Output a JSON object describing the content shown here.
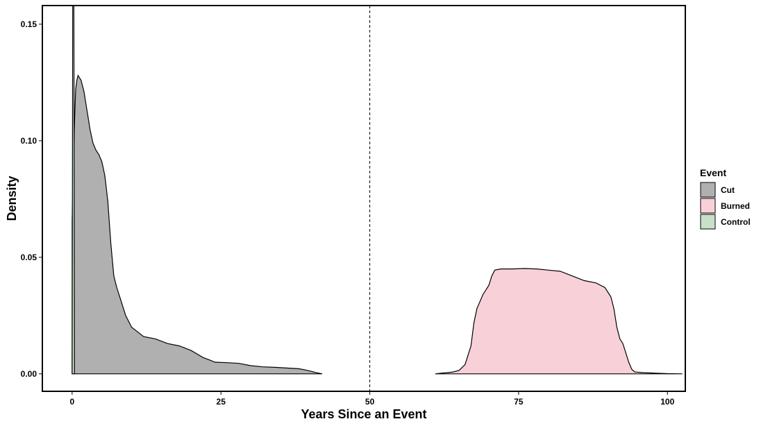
{
  "chart_data": {
    "type": "area",
    "chart_subtype": "density",
    "xlabel": "Years Since an Event",
    "ylabel": "Density",
    "xlim": [
      -5,
      103
    ],
    "ylim": [
      -0.0075,
      0.158
    ],
    "xticks": [
      0,
      25,
      50,
      75,
      100
    ],
    "yticks": [
      0.0,
      0.05,
      0.1,
      0.15
    ],
    "ytick_labels": [
      "0.00",
      "0.05",
      "0.10",
      "0.15"
    ],
    "grid": false,
    "legend": {
      "title": "Event",
      "position": "right"
    },
    "reference_lines": [
      {
        "axis": "x",
        "value": 50,
        "style": "dashed"
      }
    ],
    "series": [
      {
        "name": "Cut",
        "color": "#b0b0b0",
        "points": [
          [
            0.0,
            0.066
          ],
          [
            0.2,
            0.088
          ],
          [
            0.4,
            0.108
          ],
          [
            0.6,
            0.122
          ],
          [
            0.8,
            0.126
          ],
          [
            1.0,
            0.128
          ],
          [
            1.5,
            0.126
          ],
          [
            2.0,
            0.121
          ],
          [
            2.5,
            0.113
          ],
          [
            3.0,
            0.105
          ],
          [
            3.5,
            0.099
          ],
          [
            4.0,
            0.096
          ],
          [
            4.5,
            0.094
          ],
          [
            5.0,
            0.091
          ],
          [
            5.5,
            0.085
          ],
          [
            6.0,
            0.074
          ],
          [
            6.5,
            0.056
          ],
          [
            7.0,
            0.042
          ],
          [
            7.5,
            0.037
          ],
          [
            8.0,
            0.033
          ],
          [
            9.0,
            0.025
          ],
          [
            10.0,
            0.02
          ],
          [
            11.0,
            0.018
          ],
          [
            12.0,
            0.016
          ],
          [
            14.0,
            0.015
          ],
          [
            16.0,
            0.013
          ],
          [
            18.0,
            0.012
          ],
          [
            20.0,
            0.01
          ],
          [
            22.0,
            0.007
          ],
          [
            23.0,
            0.006
          ],
          [
            24.0,
            0.005
          ],
          [
            26.0,
            0.0048
          ],
          [
            28.0,
            0.0045
          ],
          [
            30.0,
            0.0035
          ],
          [
            32.0,
            0.003
          ],
          [
            34.0,
            0.0028
          ],
          [
            36.0,
            0.0025
          ],
          [
            38.0,
            0.0022
          ],
          [
            39.0,
            0.0018
          ],
          [
            40.0,
            0.0012
          ],
          [
            41.0,
            0.0005
          ],
          [
            42.0,
            0.0
          ]
        ]
      },
      {
        "name": "Burned",
        "color": "#f8d0d8",
        "points": [
          [
            61.0,
            0.0
          ],
          [
            62.0,
            0.0003
          ],
          [
            63.0,
            0.0005
          ],
          [
            64.0,
            0.0008
          ],
          [
            65.0,
            0.0015
          ],
          [
            66.0,
            0.004
          ],
          [
            67.0,
            0.012
          ],
          [
            67.5,
            0.022
          ],
          [
            68.0,
            0.028
          ],
          [
            68.5,
            0.031
          ],
          [
            69.0,
            0.034
          ],
          [
            70.0,
            0.038
          ],
          [
            70.5,
            0.042
          ],
          [
            71.0,
            0.0445
          ],
          [
            72.0,
            0.045
          ],
          [
            74.0,
            0.045
          ],
          [
            76.0,
            0.0452
          ],
          [
            78.0,
            0.045
          ],
          [
            80.0,
            0.0445
          ],
          [
            82.0,
            0.044
          ],
          [
            84.0,
            0.042
          ],
          [
            86.0,
            0.04
          ],
          [
            88.0,
            0.039
          ],
          [
            89.5,
            0.037
          ],
          [
            90.5,
            0.033
          ],
          [
            91.0,
            0.028
          ],
          [
            91.5,
            0.02
          ],
          [
            92.0,
            0.015
          ],
          [
            92.5,
            0.013
          ],
          [
            93.0,
            0.009
          ],
          [
            93.5,
            0.005
          ],
          [
            94.0,
            0.002
          ],
          [
            94.5,
            0.0008
          ],
          [
            96.0,
            0.0005
          ],
          [
            98.0,
            0.0003
          ],
          [
            100.0,
            0.0001
          ],
          [
            102.5,
            0.0
          ]
        ]
      },
      {
        "name": "Control",
        "color": "#c8e0c8",
        "points": [
          [
            0.0,
            0.0
          ],
          [
            0.1,
            0.158
          ],
          [
            0.3,
            0.158
          ],
          [
            0.4,
            0.0
          ]
        ]
      }
    ]
  }
}
